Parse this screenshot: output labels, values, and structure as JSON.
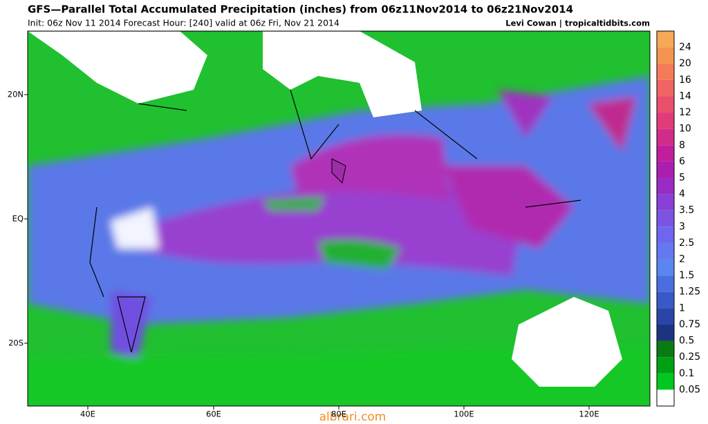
{
  "header": {
    "title": "GFS—Parallel Total Accumulated Precipitation (inches) from 06z11Nov2014 to 06z21Nov2014",
    "subtitle": "Init: 06z Nov 11 2014 Forecast Hour: [240] valid at 06z Fri, Nov 21 2014",
    "credit": "Levi Cowan | tropicaltidbits.com"
  },
  "map": {
    "lat_labels": [
      "20N",
      "EQ",
      "20S"
    ],
    "lon_labels": [
      "40E",
      "60E",
      "80E",
      "100E",
      "120E"
    ]
  },
  "colorbar": {
    "top_color": "#f5a856",
    "items": [
      {
        "label": "24",
        "color": "#f59450"
      },
      {
        "label": "20",
        "color": "#f57a5a"
      },
      {
        "label": "16",
        "color": "#f06464"
      },
      {
        "label": "14",
        "color": "#e8506e"
      },
      {
        "label": "12",
        "color": "#e03c7a"
      },
      {
        "label": "10",
        "color": "#d22c8a"
      },
      {
        "label": "8",
        "color": "#c01e9c"
      },
      {
        "label": "6",
        "color": "#ac1eb0"
      },
      {
        "label": "5",
        "color": "#9a2cc4"
      },
      {
        "label": "4",
        "color": "#8a40d6"
      },
      {
        "label": "3.5",
        "color": "#7c54e4"
      },
      {
        "label": "3",
        "color": "#6e66ee"
      },
      {
        "label": "2.5",
        "color": "#6478f0"
      },
      {
        "label": "2",
        "color": "#5a86f2"
      },
      {
        "label": "1.5",
        "color": "#4a6ee0"
      },
      {
        "label": "1.25",
        "color": "#3a58c8"
      },
      {
        "label": "1",
        "color": "#2a44a8"
      },
      {
        "label": "0.75",
        "color": "#1c3480"
      },
      {
        "label": "0.5",
        "color": "#0a7a14"
      },
      {
        "label": "0.25",
        "color": "#00a014"
      },
      {
        "label": "0.1",
        "color": "#00c81e"
      },
      {
        "label": "0.05",
        "color": "#00ee28"
      }
    ],
    "bottom_color": "#ffffff"
  },
  "watermark": "albrari.com"
}
